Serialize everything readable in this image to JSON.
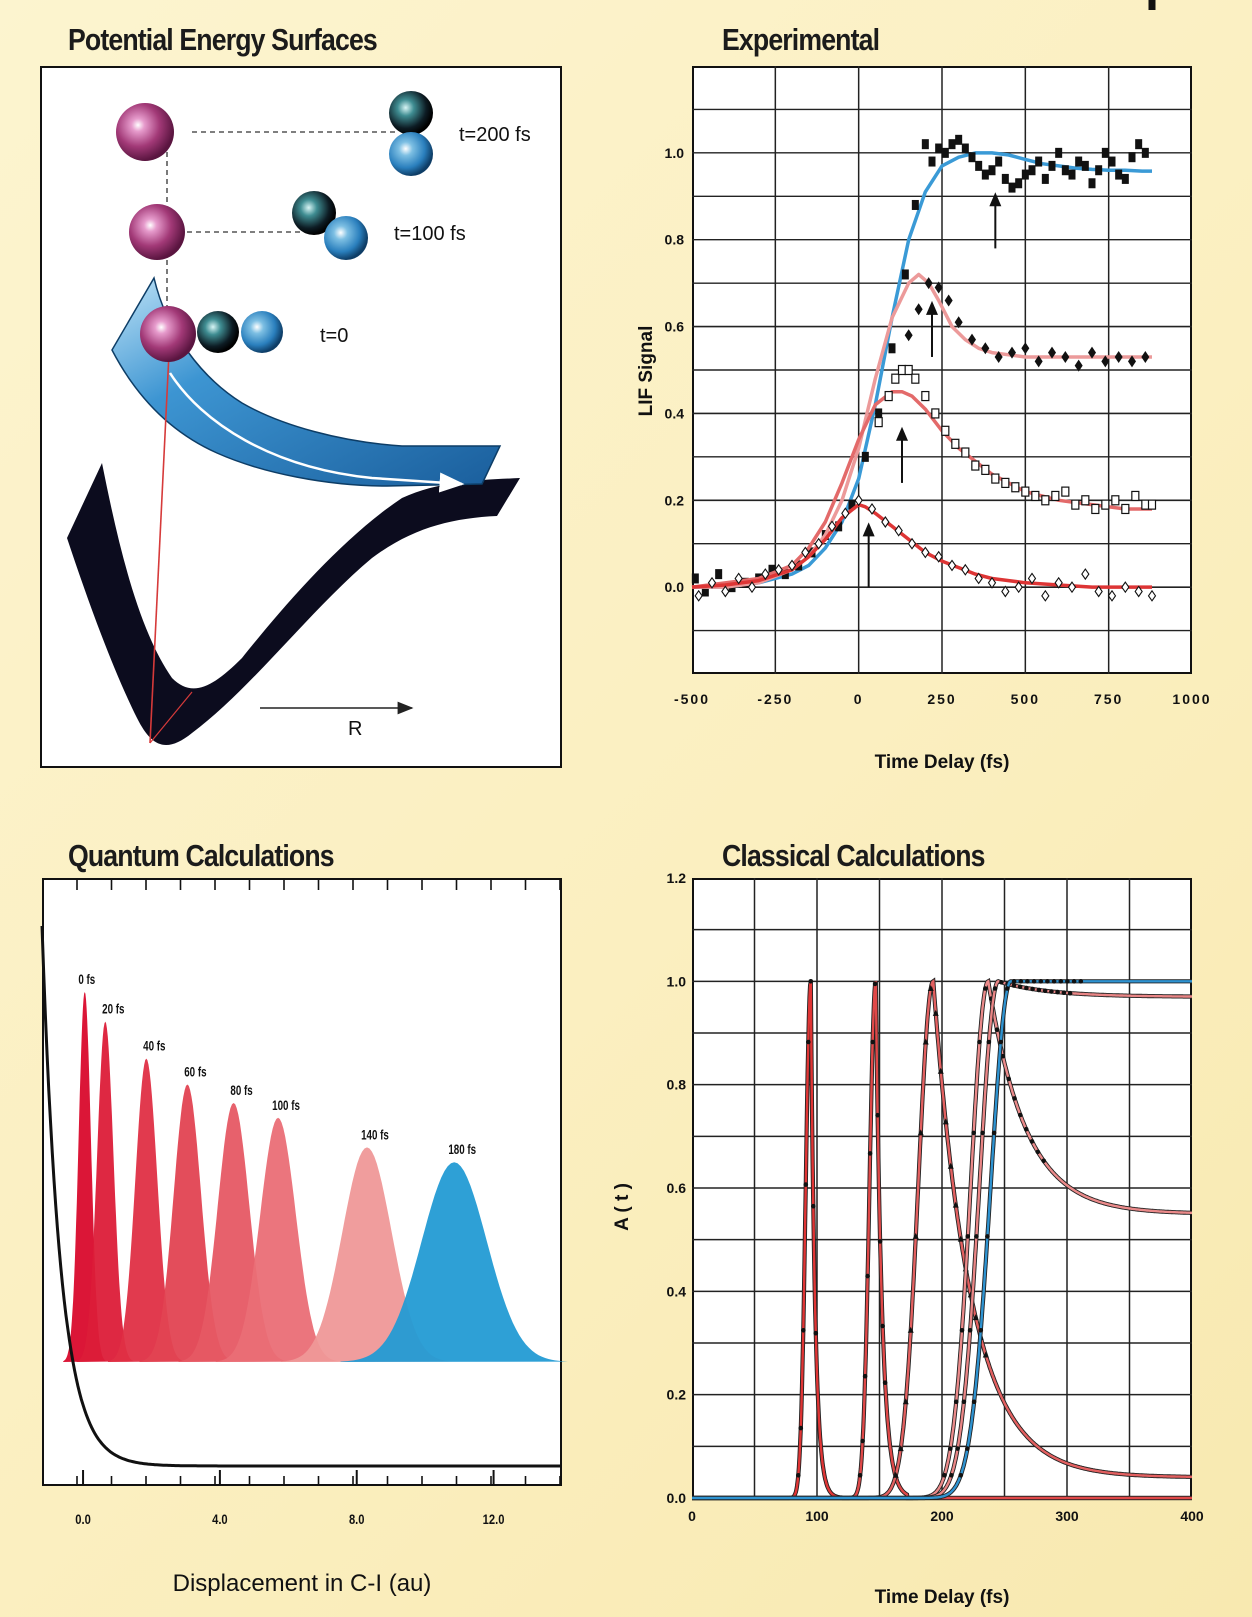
{
  "panels": {
    "pes": {
      "title": "Potential Energy Surfaces",
      "labels": {
        "t200": "t=200 fs",
        "t100": "t=100 fs",
        "t0": "t=0",
        "r": "R"
      },
      "colors": {
        "iodine_atom": "#9b2f73",
        "upper_surface": "#2a7fc2",
        "lower_surface": "#0c0c1e",
        "excitation_arrow": "#d63a3a"
      }
    },
    "experimental": {
      "title": "Experimental"
    },
    "quantum": {
      "title": "Quantum Calculations"
    },
    "classical": {
      "title": "Classical Calculations"
    }
  },
  "chart_data": [
    {
      "type": "scatter",
      "title": "Experimental",
      "xlabel": "Time Delay (fs)",
      "ylabel": "LIF Signal",
      "xlim": [
        -500,
        1000
      ],
      "ylim": [
        -0.2,
        1.2
      ],
      "xticks": [
        "-500",
        "-250",
        "0",
        "250",
        "500",
        "750",
        "1000"
      ],
      "yticks": [
        "0.0",
        "0.2",
        "0.4",
        "0.6",
        "0.8",
        "1.0"
      ],
      "grid": true,
      "series": [
        {
          "color": "#3a9ad6",
          "marker": "filled-square",
          "fit_x": [
            -500,
            -400,
            -300,
            -200,
            -150,
            -100,
            -50,
            0,
            50,
            100,
            150,
            200,
            250,
            300,
            350,
            400,
            450,
            500,
            550,
            600,
            650,
            700,
            750,
            800,
            850,
            880
          ],
          "fit_y": [
            0.0,
            0.0,
            0.01,
            0.03,
            0.05,
            0.09,
            0.15,
            0.25,
            0.42,
            0.62,
            0.8,
            0.91,
            0.97,
            0.99,
            1.0,
            1.0,
            0.995,
            0.985,
            0.975,
            0.97,
            0.965,
            0.962,
            0.96,
            0.96,
            0.958,
            0.958
          ],
          "points_x": [
            -490,
            -460,
            -420,
            -380,
            -340,
            -300,
            -260,
            -220,
            -180,
            -140,
            -100,
            -60,
            -20,
            20,
            60,
            100,
            140,
            170,
            200,
            220,
            240,
            260,
            280,
            300,
            320,
            340,
            360,
            380,
            400,
            420,
            440,
            460,
            480,
            500,
            520,
            540,
            560,
            580,
            600,
            620,
            640,
            660,
            680,
            700,
            720,
            740,
            760,
            780,
            800,
            820,
            840,
            860,
            880
          ],
          "points_y": [
            0.02,
            -0.01,
            0.03,
            0.0,
            0.01,
            0.02,
            0.04,
            0.03,
            0.05,
            0.08,
            0.12,
            0.14,
            0.19,
            0.3,
            0.4,
            0.55,
            0.72,
            0.88,
            1.02,
            0.98,
            1.01,
            1.0,
            1.02,
            1.03,
            1.01,
            0.99,
            0.97,
            0.95,
            0.96,
            0.98,
            0.94,
            0.92,
            0.93,
            0.95,
            0.96,
            0.98,
            0.94,
            0.97,
            1.0,
            0.96,
            0.95,
            0.98,
            0.97,
            0.93,
            0.96,
            1.0,
            0.98,
            0.95,
            0.94,
            0.99,
            1.02,
            1.0
          ]
        },
        {
          "color": "#ec9a9a",
          "marker": "filled-diamond",
          "fit_x": [
            -500,
            -400,
            -300,
            -200,
            -150,
            -100,
            -50,
            0,
            50,
            100,
            150,
            180,
            210,
            240,
            280,
            320,
            360,
            400,
            450,
            500,
            600,
            700,
            800,
            880
          ],
          "fit_y": [
            0.0,
            0.0,
            0.01,
            0.04,
            0.07,
            0.12,
            0.2,
            0.32,
            0.48,
            0.62,
            0.7,
            0.72,
            0.7,
            0.66,
            0.6,
            0.57,
            0.55,
            0.54,
            0.535,
            0.53,
            0.53,
            0.53,
            0.53,
            0.53
          ],
          "points_x": [
            150,
            180,
            210,
            240,
            270,
            300,
            340,
            380,
            420,
            460,
            500,
            540,
            580,
            620,
            660,
            700,
            740,
            780,
            820,
            860
          ],
          "points_y": [
            0.58,
            0.64,
            0.7,
            0.69,
            0.66,
            0.61,
            0.57,
            0.55,
            0.53,
            0.54,
            0.55,
            0.52,
            0.54,
            0.53,
            0.51,
            0.54,
            0.52,
            0.53,
            0.52,
            0.53
          ]
        },
        {
          "color": "#e36a6a",
          "marker": "open-square",
          "fit_x": [
            -500,
            -400,
            -300,
            -200,
            -150,
            -100,
            -50,
            0,
            50,
            100,
            130,
            160,
            200,
            250,
            300,
            350,
            400,
            450,
            500,
            550,
            600,
            650,
            700,
            750,
            800,
            880
          ],
          "fit_y": [
            0.0,
            0.01,
            0.02,
            0.05,
            0.09,
            0.15,
            0.24,
            0.34,
            0.42,
            0.45,
            0.45,
            0.44,
            0.41,
            0.36,
            0.32,
            0.29,
            0.26,
            0.24,
            0.22,
            0.21,
            0.2,
            0.195,
            0.19,
            0.185,
            0.18,
            0.18
          ],
          "points_x": [
            60,
            90,
            110,
            130,
            150,
            170,
            200,
            230,
            260,
            290,
            320,
            350,
            380,
            410,
            440,
            470,
            500,
            530,
            560,
            590,
            620,
            650,
            680,
            710,
            740,
            770,
            800,
            830,
            860,
            880
          ],
          "points_y": [
            0.38,
            0.44,
            0.48,
            0.5,
            0.5,
            0.48,
            0.44,
            0.4,
            0.36,
            0.33,
            0.31,
            0.28,
            0.27,
            0.25,
            0.24,
            0.23,
            0.22,
            0.21,
            0.2,
            0.21,
            0.22,
            0.19,
            0.2,
            0.18,
            0.19,
            0.2,
            0.18,
            0.21,
            0.19,
            0.19
          ]
        },
        {
          "color": "#dd3535",
          "marker": "open-diamond",
          "fit_x": [
            -500,
            -400,
            -300,
            -200,
            -150,
            -100,
            -50,
            0,
            20,
            50,
            100,
            150,
            200,
            250,
            300,
            350,
            400,
            450,
            500,
            600,
            700,
            800,
            880
          ],
          "fit_y": [
            0.0,
            0.005,
            0.015,
            0.04,
            0.07,
            0.11,
            0.16,
            0.19,
            0.185,
            0.17,
            0.14,
            0.11,
            0.08,
            0.06,
            0.045,
            0.03,
            0.02,
            0.015,
            0.01,
            0.005,
            0.0,
            0.0,
            0.0
          ],
          "points_x": [
            -480,
            -440,
            -400,
            -360,
            -320,
            -280,
            -240,
            -200,
            -160,
            -120,
            -80,
            -40,
            0,
            40,
            80,
            120,
            160,
            200,
            240,
            280,
            320,
            360,
            400,
            440,
            480,
            520,
            560,
            600,
            640,
            680,
            720,
            760,
            800,
            840,
            880
          ],
          "points_y": [
            -0.02,
            0.01,
            -0.01,
            0.02,
            0.0,
            0.03,
            0.04,
            0.05,
            0.08,
            0.1,
            0.14,
            0.17,
            0.2,
            0.18,
            0.15,
            0.13,
            0.1,
            0.08,
            0.07,
            0.05,
            0.04,
            0.02,
            0.01,
            -0.01,
            0.0,
            0.02,
            -0.02,
            0.01,
            0.0,
            0.03,
            -0.01,
            -0.02,
            0.0,
            -0.01,
            -0.02
          ]
        }
      ],
      "arrows_x": [
        410,
        220,
        130,
        30
      ]
    },
    {
      "type": "area",
      "title": "Quantum Calculations",
      "xlabel": "Displacement in C-I (au)",
      "ylabel": "",
      "xlim": [
        -1.2,
        14.0
      ],
      "xticks": [
        "0.0",
        "4.0",
        "8.0",
        "12.0"
      ],
      "grid": false,
      "wavepackets": [
        {
          "label": "0 fs",
          "center": 0.05,
          "width": 0.18,
          "height": 1.0,
          "color": "#d90a2c"
        },
        {
          "label": "20 fs",
          "center": 0.65,
          "width": 0.24,
          "height": 0.92,
          "color": "#dc1c38"
        },
        {
          "label": "40 fs",
          "center": 1.85,
          "width": 0.32,
          "height": 0.82,
          "color": "#df2f44"
        },
        {
          "label": "60 fs",
          "center": 3.05,
          "width": 0.4,
          "height": 0.75,
          "color": "#e24352"
        },
        {
          "label": "80 fs",
          "center": 4.4,
          "width": 0.46,
          "height": 0.7,
          "color": "#e65864"
        },
        {
          "label": "100 fs",
          "center": 5.7,
          "width": 0.52,
          "height": 0.66,
          "color": "#ea6e76"
        },
        {
          "label": "140 fs",
          "center": 8.3,
          "width": 0.72,
          "height": 0.58,
          "color": "#ef9898"
        },
        {
          "label": "180 fs",
          "center": 10.85,
          "width": 0.95,
          "height": 0.54,
          "color": "#239bd4"
        }
      ]
    },
    {
      "type": "line",
      "title": "Classical Calculations",
      "xlabel": "Time Delay (fs)",
      "ylabel": "A ( t )",
      "xlim": [
        0,
        400
      ],
      "ylim": [
        0.0,
        1.2
      ],
      "xticks": [
        "0",
        "100",
        "200",
        "300",
        "400"
      ],
      "yticks": [
        "0.0",
        "0.2",
        "0.4",
        "0.6",
        "0.8",
        "1.0",
        "1.2"
      ],
      "grid": true,
      "series": [
        {
          "color": "#e03535",
          "peak_time": 95,
          "rise": 4,
          "decay": 3.5,
          "plateau": 0.0
        },
        {
          "color": "#e04848",
          "peak_time": 147,
          "rise": 5,
          "decay": 5,
          "plateau": 0.0
        },
        {
          "color": "#e36060",
          "peak_time": 193,
          "rise": 12,
          "decay": 30,
          "plateau": 0.04
        },
        {
          "color": "#eb8a8a",
          "peak_time": 237,
          "rise": 14,
          "decay": 30,
          "plateau": 0.55
        },
        {
          "color": "#e98585",
          "peak_time": 245,
          "rise": 15,
          "decay": 40,
          "plateau": 0.97
        },
        {
          "color": "#2e93d1",
          "peak_time": 255,
          "rise": 16,
          "decay": 1000,
          "plateau": 1.0
        }
      ]
    }
  ]
}
